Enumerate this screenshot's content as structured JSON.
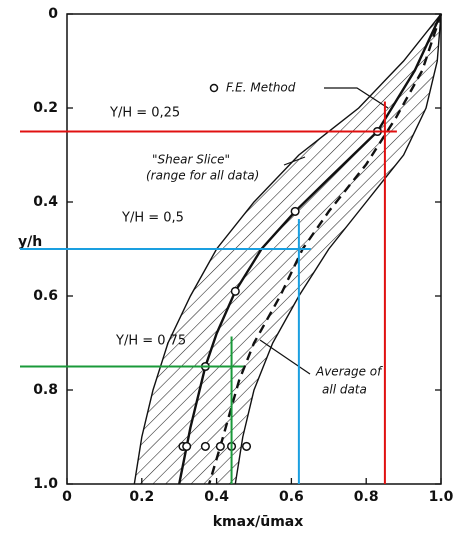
{
  "chart_data": {
    "type": "line",
    "x_label": "kmax/ūmax",
    "y_label": "y/h",
    "xlim": [
      0,
      1
    ],
    "ylim": [
      0,
      1
    ],
    "y_inverted": true,
    "xticks": [
      0,
      0.2,
      0.4,
      0.6,
      0.8,
      {
        "value": 1,
        "label": "1.0"
      }
    ],
    "yticks": [
      0,
      0.2,
      0.4,
      0.6,
      0.8,
      {
        "value": 1,
        "label": "1.0"
      }
    ],
    "band": {
      "hatch_color": "#222",
      "left": {
        "x": [
          1,
          0.9,
          0.78,
          0.62,
          0.5,
          0.4,
          0.33,
          0.27,
          0.23,
          0.2,
          0.18
        ],
        "values": [
          0,
          0.1,
          0.2,
          0.3,
          0.4,
          0.5,
          0.6,
          0.7,
          0.8,
          0.9,
          1
        ]
      },
      "right": {
        "x": [
          1,
          0.99,
          0.96,
          0.9,
          0.8,
          0.7,
          0.62,
          0.55,
          0.5,
          0.47,
          0.45
        ],
        "values": [
          0,
          0.1,
          0.2,
          0.3,
          0.4,
          0.5,
          0.6,
          0.7,
          0.8,
          0.9,
          1
        ]
      }
    },
    "series": [
      {
        "style": "solid",
        "color": "#111",
        "x": [
          1,
          0.93,
          0.83,
          0.7,
          0.61,
          0.52,
          0.45,
          0.4,
          0.37,
          0.33,
          0.3
        ],
        "values": [
          0,
          0.12,
          0.25,
          0.35,
          0.42,
          0.5,
          0.59,
          0.68,
          0.75,
          0.88,
          1
        ]
      },
      {
        "style": "dashed",
        "color": "#111",
        "x": [
          1,
          0.95,
          0.88,
          0.8,
          0.7,
          0.63,
          0.57,
          0.5,
          0.46,
          0.41,
          0.38
        ],
        "values": [
          0,
          0.12,
          0.22,
          0.32,
          0.42,
          0.5,
          0.6,
          0.7,
          0.78,
          0.92,
          1
        ]
      },
      {
        "style": "points",
        "name": "F.E. Method",
        "color": "#111",
        "x": [
          0.83,
          0.61,
          0.45,
          0.37,
          0.31,
          0.32,
          0.37,
          0.41,
          0.44,
          0.48
        ],
        "values": [
          0.25,
          0.42,
          0.59,
          0.75,
          0.92,
          0.92,
          0.92,
          0.92,
          0.92,
          0.92
        ]
      }
    ],
    "annotations": [
      "\"Shear Slice\"",
      "(range for all data)",
      "Average of",
      "all data"
    ],
    "reference_lines": [
      {
        "label": "Y/H = 0,25",
        "color": "#e01010",
        "y": 0.25,
        "x": 0.85
      },
      {
        "label": "Y/H = 0,5",
        "color": "#1a9fe0",
        "y": 0.5,
        "x": 0.62
      },
      {
        "label": "Y/H = 0,75",
        "color": "#1a9a3a",
        "y": 0.75,
        "x": 0.44
      }
    ]
  }
}
